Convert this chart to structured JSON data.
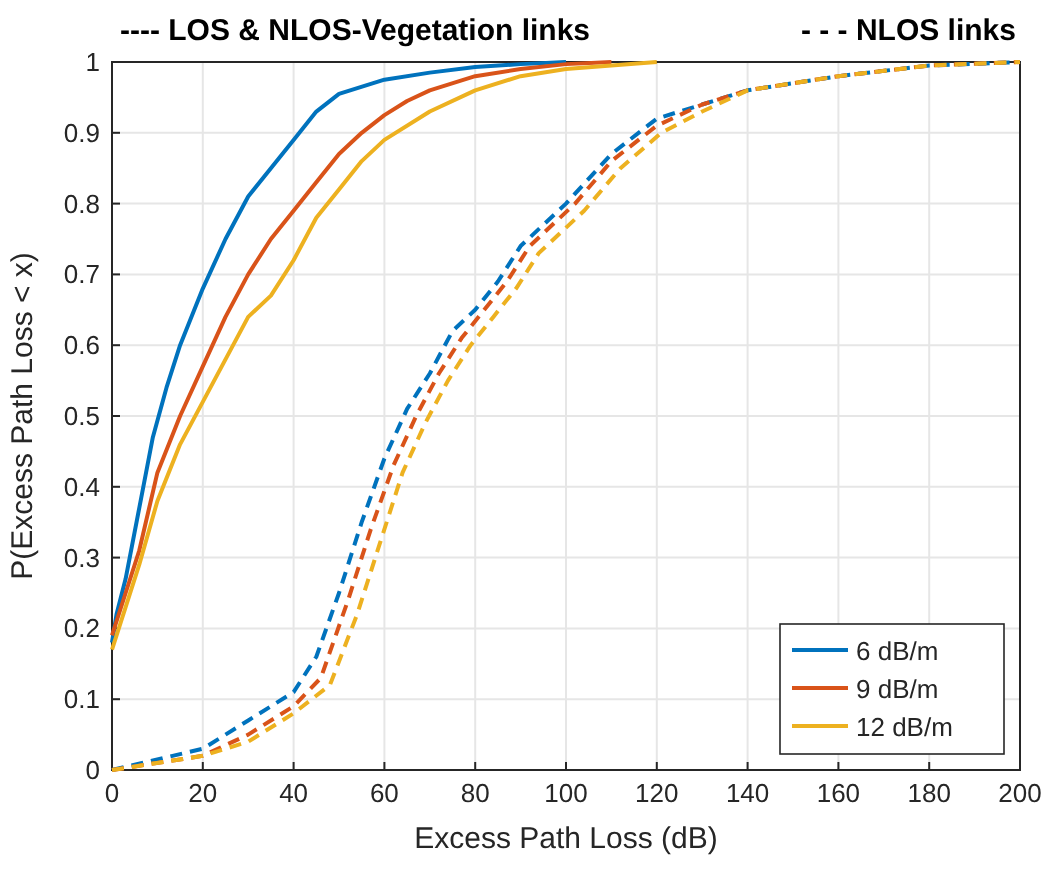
{
  "chart_data": {
    "type": "line",
    "xlabel": "Excess Path Loss (dB)",
    "ylabel": "P(Excess Path Loss < x)",
    "annotations": [
      "---- LOS & NLOS-Vegetation links",
      "- - - NLOS links"
    ],
    "xlim": [
      0,
      200
    ],
    "xticks": [
      0,
      20,
      40,
      60,
      80,
      100,
      120,
      140,
      160,
      180,
      200
    ],
    "ylim": [
      0,
      1
    ],
    "yticks": [
      0,
      0.1,
      0.2,
      0.3,
      0.4,
      0.5,
      0.6,
      0.7,
      0.8,
      0.9,
      1
    ],
    "grid": true,
    "legend": "bottom right",
    "series": [
      {
        "name": "6 dB/m",
        "color": "#0072bd",
        "line_style": "solid",
        "x": [
          0,
          1,
          3,
          6,
          9,
          12,
          15,
          20,
          25,
          30,
          35,
          40,
          45,
          50,
          60,
          70,
          80,
          90,
          100
        ],
        "values": [
          0.18,
          0.22,
          0.27,
          0.37,
          0.47,
          0.54,
          0.6,
          0.68,
          0.75,
          0.81,
          0.85,
          0.89,
          0.93,
          0.955,
          0.975,
          0.985,
          0.993,
          0.997,
          1
        ]
      },
      {
        "name": "9 dB/m",
        "color": "#d95319",
        "line_style": "solid",
        "x": [
          0,
          3,
          6,
          10,
          15,
          20,
          25,
          30,
          35,
          40,
          45,
          50,
          55,
          60,
          65,
          70,
          80,
          90,
          100,
          110
        ],
        "values": [
          0.19,
          0.25,
          0.31,
          0.42,
          0.5,
          0.57,
          0.64,
          0.7,
          0.75,
          0.79,
          0.83,
          0.87,
          0.9,
          0.925,
          0.945,
          0.96,
          0.98,
          0.99,
          0.997,
          1
        ]
      },
      {
        "name": "12 dB/m",
        "color": "#edb120",
        "line_style": "solid",
        "x": [
          0,
          3,
          6,
          10,
          15,
          20,
          25,
          30,
          35,
          40,
          45,
          50,
          55,
          60,
          70,
          80,
          90,
          100,
          120
        ],
        "values": [
          0.17,
          0.23,
          0.29,
          0.38,
          0.46,
          0.52,
          0.58,
          0.64,
          0.67,
          0.72,
          0.78,
          0.82,
          0.86,
          0.89,
          0.93,
          0.96,
          0.98,
          0.99,
          1
        ]
      },
      {
        "color": "#0072bd",
        "line_style": "dashed",
        "x": [
          0,
          20,
          30,
          40,
          45,
          50,
          55,
          60,
          65,
          70,
          75,
          80,
          85,
          90,
          100,
          110,
          120,
          130,
          140,
          160,
          180,
          200
        ],
        "values": [
          0,
          0.03,
          0.07,
          0.11,
          0.16,
          0.25,
          0.35,
          0.44,
          0.51,
          0.56,
          0.62,
          0.65,
          0.69,
          0.74,
          0.8,
          0.87,
          0.92,
          0.94,
          0.96,
          0.98,
          0.995,
          1
        ]
      },
      {
        "color": "#d95319",
        "line_style": "dashed",
        "x": [
          0,
          20,
          30,
          40,
          46,
          52,
          57,
          62,
          67,
          72,
          77,
          82,
          87,
          92,
          102,
          110,
          120,
          130,
          140,
          160,
          180,
          200
        ],
        "values": [
          0,
          0.02,
          0.05,
          0.09,
          0.13,
          0.24,
          0.34,
          0.43,
          0.5,
          0.56,
          0.61,
          0.65,
          0.69,
          0.74,
          0.8,
          0.86,
          0.91,
          0.94,
          0.96,
          0.98,
          0.995,
          1
        ]
      },
      {
        "color": "#edb120",
        "line_style": "dashed",
        "x": [
          0,
          20,
          30,
          40,
          48,
          54,
          59,
          64,
          69,
          74,
          79,
          84,
          89,
          94,
          104,
          112,
          121,
          130,
          140,
          160,
          180,
          200
        ],
        "values": [
          0,
          0.02,
          0.04,
          0.08,
          0.12,
          0.22,
          0.32,
          0.42,
          0.49,
          0.55,
          0.6,
          0.64,
          0.68,
          0.73,
          0.79,
          0.85,
          0.9,
          0.93,
          0.96,
          0.98,
          0.995,
          1
        ]
      }
    ]
  }
}
